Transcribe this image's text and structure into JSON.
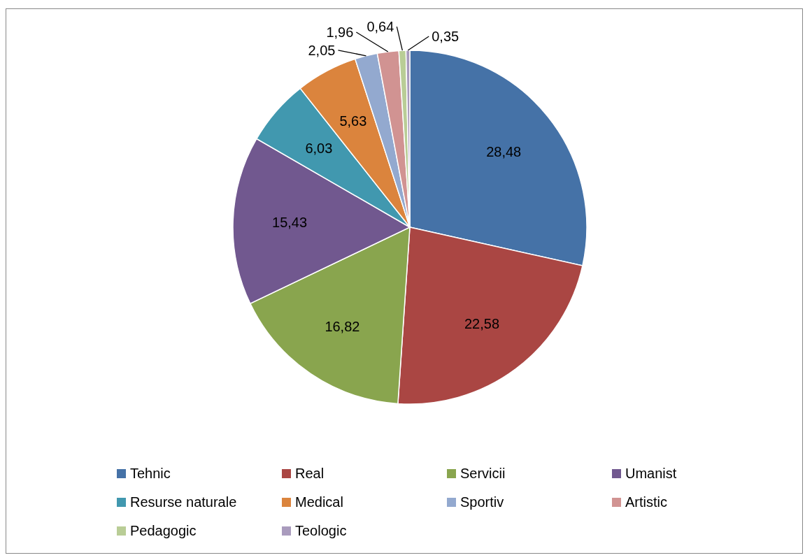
{
  "chart_data": {
    "type": "pie",
    "categories": [
      "Tehnic",
      "Real",
      "Servicii",
      "Umanist",
      "Resurse naturale",
      "Medical",
      "Sportiv",
      "Artistic",
      "Pedagogic",
      "Teologic"
    ],
    "values": [
      28.48,
      22.58,
      16.82,
      15.43,
      6.03,
      5.63,
      2.05,
      1.96,
      0.64,
      0.35
    ],
    "colors": [
      "#4572a7",
      "#aa4643",
      "#89a54e",
      "#71588f",
      "#4198af",
      "#db843d",
      "#93a9cf",
      "#d19392",
      "#b9cd96",
      "#a99bbd"
    ],
    "value_labels": [
      "28,48",
      "22,58",
      "16,82",
      "15,43",
      "6,03",
      "5,63",
      "2,05",
      "1,96",
      "0,64",
      "0,35"
    ],
    "legend": "bottom"
  }
}
